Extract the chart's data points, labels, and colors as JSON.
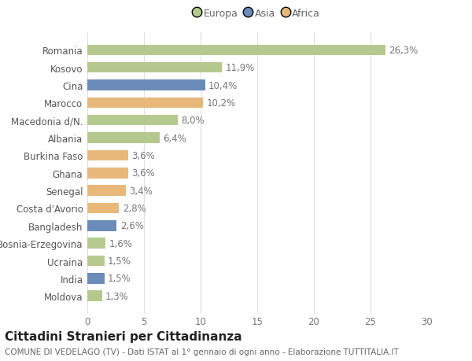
{
  "countries": [
    "Romania",
    "Kosovo",
    "Cina",
    "Marocco",
    "Macedonia d/N.",
    "Albania",
    "Burkina Faso",
    "Ghana",
    "Senegal",
    "Costa d'Avorio",
    "Bangladesh",
    "Bosnia-Erzegovina",
    "Ucraina",
    "India",
    "Moldova"
  ],
  "values": [
    26.3,
    11.9,
    10.4,
    10.2,
    8.0,
    6.4,
    3.6,
    3.6,
    3.4,
    2.8,
    2.6,
    1.6,
    1.5,
    1.5,
    1.3
  ],
  "labels": [
    "26,3%",
    "11,9%",
    "10,4%",
    "10,2%",
    "8,0%",
    "6,4%",
    "3,6%",
    "3,6%",
    "3,4%",
    "2,8%",
    "2,6%",
    "1,6%",
    "1,5%",
    "1,5%",
    "1,3%"
  ],
  "continents": [
    "Europa",
    "Europa",
    "Asia",
    "Africa",
    "Europa",
    "Europa",
    "Africa",
    "Africa",
    "Africa",
    "Africa",
    "Asia",
    "Europa",
    "Europa",
    "Asia",
    "Europa"
  ],
  "colors": {
    "Europa": "#b5c98e",
    "Asia": "#6b8cba",
    "Africa": "#e8b87a"
  },
  "legend_labels": [
    "Europa",
    "Asia",
    "Africa"
  ],
  "title": "Cittadini Stranieri per Cittadinanza",
  "subtitle": "COMUNE DI VEDELAGO (TV) - Dati ISTAT al 1° gennaio di ogni anno - Elaborazione TUTTITALIA.IT",
  "xlim": [
    0,
    30
  ],
  "xticks": [
    0,
    5,
    10,
    15,
    20,
    25,
    30
  ],
  "background_color": "#ffffff",
  "grid_color": "#e0e0e0",
  "bar_height": 0.6,
  "label_fontsize": 8.5,
  "tick_fontsize": 8.5,
  "title_fontsize": 11,
  "subtitle_fontsize": 7.5,
  "legend_fontsize": 9
}
